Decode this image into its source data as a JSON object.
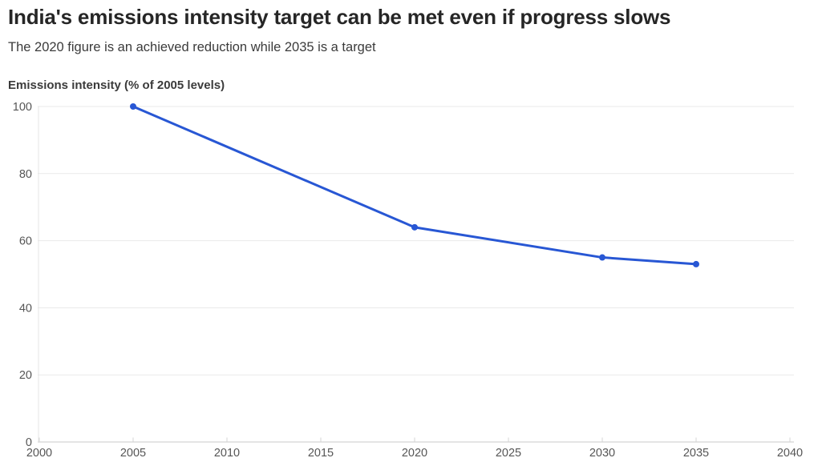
{
  "chart_data": {
    "type": "line",
    "title": "India's emissions intensity target can be met even if progress slows",
    "subtitle": "The 2020 figure is an achieved reduction while 2035 is a target",
    "ylabel": "Emissions intensity (% of 2005 levels)",
    "xlabel": "",
    "x": [
      2005,
      2020,
      2030,
      2035
    ],
    "y": [
      100,
      64,
      55,
      53
    ],
    "xlim": [
      2000,
      2040
    ],
    "ylim": [
      0,
      100
    ],
    "x_ticks": [
      2000,
      2005,
      2010,
      2015,
      2020,
      2025,
      2030,
      2035,
      2040
    ],
    "y_ticks": [
      0,
      20,
      40,
      60,
      80,
      100
    ],
    "grid": "horizontal",
    "legend": "none",
    "line_color": "#2857d4",
    "point_color": "#2857d4",
    "colors": {
      "title": "#262626",
      "subtitle": "#3b3b3b",
      "tick_label": "#565656",
      "gridline": "#e9e9e9",
      "baseline": "#c9c9c9",
      "left_axis_line": "#e4e4e4",
      "x_tick_mark": "#d4d4d4"
    }
  }
}
